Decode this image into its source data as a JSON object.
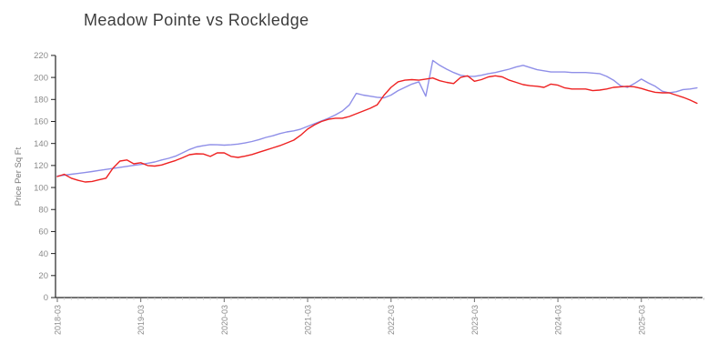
{
  "title": "Meadow Pointe vs Rockledge",
  "colors": {
    "series_blue": "#8f8fe8",
    "series_red": "#ee2222",
    "axis_line": "#222222",
    "tick_label": "#8a8a8a",
    "axis_label": "#777777",
    "major_tick": "#777777",
    "minor_tick": "#c8c8c8",
    "title_text": "#3d3d3d",
    "background": "#ffffff"
  },
  "chart_data": {
    "type": "line",
    "title": "Meadow Pointe vs Rockledge",
    "xlabel": "",
    "ylabel": "Price Per Sq Ft",
    "ylim": [
      0,
      220
    ],
    "y_ticks": [
      0,
      20,
      40,
      60,
      80,
      100,
      120,
      140,
      160,
      180,
      200,
      220
    ],
    "x_tick_labels": [
      "2018-03",
      "2019-03",
      "2020-03",
      "2021-03",
      "2022-03",
      "2023-03",
      "2024-03",
      "2025-03"
    ],
    "x_tick_rotation": -90,
    "grid": false,
    "legend_position": "none",
    "x_interval": "monthly",
    "months": [
      "2018-03",
      "2018-04",
      "2018-05",
      "2018-06",
      "2018-07",
      "2018-08",
      "2018-09",
      "2018-10",
      "2018-11",
      "2018-12",
      "2019-01",
      "2019-02",
      "2019-03",
      "2019-04",
      "2019-05",
      "2019-06",
      "2019-07",
      "2019-08",
      "2019-09",
      "2019-10",
      "2019-11",
      "2019-12",
      "2020-01",
      "2020-02",
      "2020-03",
      "2020-04",
      "2020-05",
      "2020-06",
      "2020-07",
      "2020-08",
      "2020-09",
      "2020-10",
      "2020-11",
      "2020-12",
      "2021-01",
      "2021-02",
      "2021-03",
      "2021-04",
      "2021-05",
      "2021-06",
      "2021-07",
      "2021-08",
      "2021-09",
      "2021-10",
      "2021-11",
      "2021-12",
      "2022-01",
      "2022-02",
      "2022-03",
      "2022-04",
      "2022-05",
      "2022-06",
      "2022-07",
      "2022-08",
      "2022-09",
      "2022-10",
      "2022-11",
      "2022-12",
      "2023-01",
      "2023-02",
      "2023-03",
      "2023-04",
      "2023-05",
      "2023-06",
      "2023-07",
      "2023-08",
      "2023-09",
      "2023-10",
      "2023-11",
      "2023-12",
      "2024-01",
      "2024-02",
      "2024-03",
      "2024-04",
      "2024-05",
      "2024-06",
      "2024-07",
      "2024-08",
      "2024-09",
      "2024-10",
      "2024-11",
      "2024-12",
      "2025-01",
      "2025-02",
      "2025-03",
      "2025-04",
      "2025-05",
      "2025-06",
      "2025-07",
      "2025-08",
      "2025-09",
      "2025-10",
      "2025-11"
    ],
    "series": [
      {
        "name": "Meadow Pointe",
        "color": "#8f8fe8",
        "values": [
          110.5,
          111.2,
          112.0,
          112.8,
          113.6,
          114.5,
          115.5,
          116.4,
          117.3,
          118.3,
          119.2,
          120.1,
          121.0,
          122.0,
          123.2,
          125.0,
          126.5,
          128.5,
          131.5,
          134.5,
          136.8,
          138.0,
          139.0,
          138.8,
          138.5,
          138.8,
          139.5,
          140.5,
          141.8,
          143.5,
          145.5,
          147.0,
          149.0,
          150.5,
          151.5,
          153.0,
          155.5,
          158.0,
          160.5,
          163.0,
          166.0,
          169.5,
          175.0,
          185.5,
          184.0,
          183.0,
          182.0,
          181.5,
          184.0,
          188.0,
          191.0,
          194.0,
          196.0,
          183.0,
          215.5,
          211.0,
          207.5,
          204.5,
          202.0,
          201.0,
          201.0,
          202.0,
          203.5,
          204.5,
          206.0,
          207.5,
          209.5,
          211.0,
          209.0,
          207.0,
          206.0,
          205.0,
          205.0,
          205.0,
          204.5,
          204.5,
          204.5,
          204.0,
          203.5,
          201.0,
          197.5,
          192.5,
          191.0,
          194.5,
          198.5,
          195.0,
          192.0,
          187.5,
          186.0,
          187.0,
          189.0,
          189.5,
          190.5
        ]
      },
      {
        "name": "Rockledge",
        "color": "#ee2222",
        "values": [
          110.0,
          112.0,
          108.5,
          106.5,
          105.0,
          105.5,
          107.0,
          108.5,
          117.5,
          124.0,
          125.0,
          121.5,
          122.5,
          120.0,
          119.5,
          120.5,
          122.5,
          124.5,
          127.0,
          129.8,
          130.6,
          130.5,
          128.2,
          131.5,
          131.5,
          128.2,
          127.3,
          128.5,
          130.0,
          132.0,
          134.0,
          136.0,
          138.0,
          140.5,
          143.0,
          147.5,
          153.0,
          157.0,
          160.0,
          162.0,
          163.0,
          163.0,
          164.5,
          167.0,
          169.5,
          172.0,
          175.0,
          184.0,
          191.0,
          196.0,
          197.5,
          198.0,
          197.5,
          198.5,
          199.5,
          197.0,
          195.5,
          194.5,
          200.0,
          201.5,
          196.5,
          198.0,
          200.5,
          201.5,
          200.5,
          197.5,
          195.5,
          193.5,
          192.5,
          192.0,
          191.0,
          194.0,
          193.0,
          190.5,
          189.5,
          189.5,
          189.5,
          188.0,
          188.5,
          189.5,
          191.0,
          191.5,
          192.0,
          191.5,
          190.0,
          188.0,
          186.5,
          186.0,
          186.0,
          184.0,
          182.0,
          179.5,
          176.5
        ]
      }
    ]
  }
}
